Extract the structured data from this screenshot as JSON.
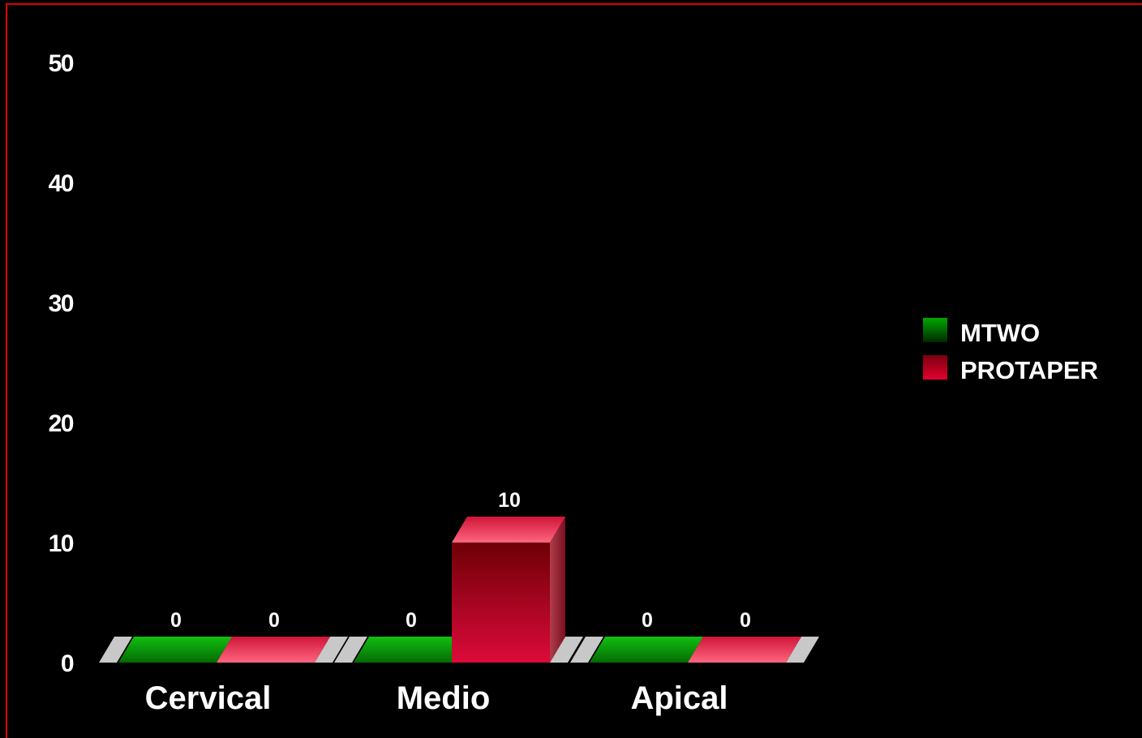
{
  "chart_data": {
    "type": "bar",
    "categories": [
      "Cervical",
      "Medio",
      "Apical"
    ],
    "series": [
      {
        "name": "MTWO",
        "values": [
          0,
          0,
          0
        ],
        "color": "#00b000"
      },
      {
        "name": "PROTAPER",
        "values": [
          0,
          10,
          0
        ],
        "color": "#d4002e"
      }
    ],
    "data_labels": [
      [
        "0",
        "0",
        "0"
      ],
      [
        "0",
        "10",
        "0"
      ]
    ],
    "ylim": [
      0,
      50
    ],
    "yticks": [
      "0",
      "10",
      "20",
      "30",
      "40",
      "50"
    ],
    "style": "3d",
    "legend": "right",
    "grid": false,
    "background": "#000000",
    "border_color": "#e00000"
  }
}
